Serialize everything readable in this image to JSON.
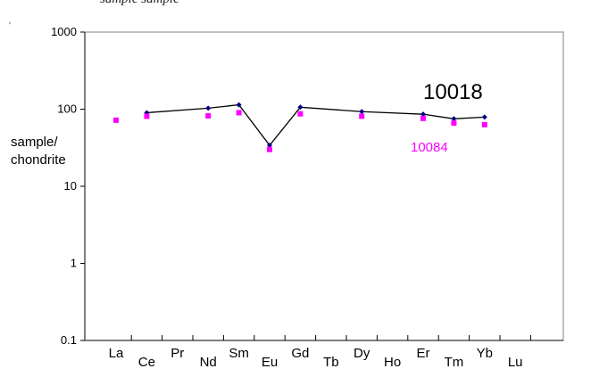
{
  "caption": "sample        sample",
  "stray_mark": "'",
  "chart_data": {
    "type": "line",
    "categories": [
      "La",
      "Ce",
      "Pr",
      "Nd",
      "Sm",
      "Eu",
      "Gd",
      "Tb",
      "Dy",
      "Ho",
      "Er",
      "Tm",
      "Yb",
      "Lu"
    ],
    "ylabel": "sample/\nchondrite",
    "ylabel_lines": [
      "sample/",
      "chondrite"
    ],
    "yscale": "log",
    "ylim": [
      0.1,
      1000
    ],
    "yticks": [
      {
        "value": 0.1,
        "label": "0.1"
      },
      {
        "value": 1,
        "label": "1"
      },
      {
        "value": 10,
        "label": "10"
      },
      {
        "value": 100,
        "label": "100"
      },
      {
        "value": 1000,
        "label": "1000"
      }
    ],
    "grid": false,
    "series": [
      {
        "name": "10018",
        "style": "line-with-markers",
        "color": "#000000",
        "marker_color": "#000080",
        "points": [
          {
            "cat": "Ce",
            "y": 90
          },
          {
            "cat": "Nd",
            "y": 103
          },
          {
            "cat": "Sm",
            "y": 114
          },
          {
            "cat": "Eu",
            "y": 34
          },
          {
            "cat": "Gd",
            "y": 106
          },
          {
            "cat": "Dy",
            "y": 93
          },
          {
            "cat": "Er",
            "y": 86
          },
          {
            "cat": "Tm",
            "y": 75
          },
          {
            "cat": "Yb",
            "y": 79
          }
        ]
      },
      {
        "name": "10084",
        "style": "markers",
        "color": "#ff00ff",
        "points": [
          {
            "cat": "La",
            "y": 72
          },
          {
            "cat": "Ce",
            "y": 81
          },
          {
            "cat": "Nd",
            "y": 82
          },
          {
            "cat": "Sm",
            "y": 90
          },
          {
            "cat": "Eu",
            "y": 30
          },
          {
            "cat": "Gd",
            "y": 87
          },
          {
            "cat": "Dy",
            "y": 81
          },
          {
            "cat": "Er",
            "y": 76
          },
          {
            "cat": "Tm",
            "y": 66
          },
          {
            "cat": "Yb",
            "y": 63
          }
        ]
      }
    ]
  }
}
